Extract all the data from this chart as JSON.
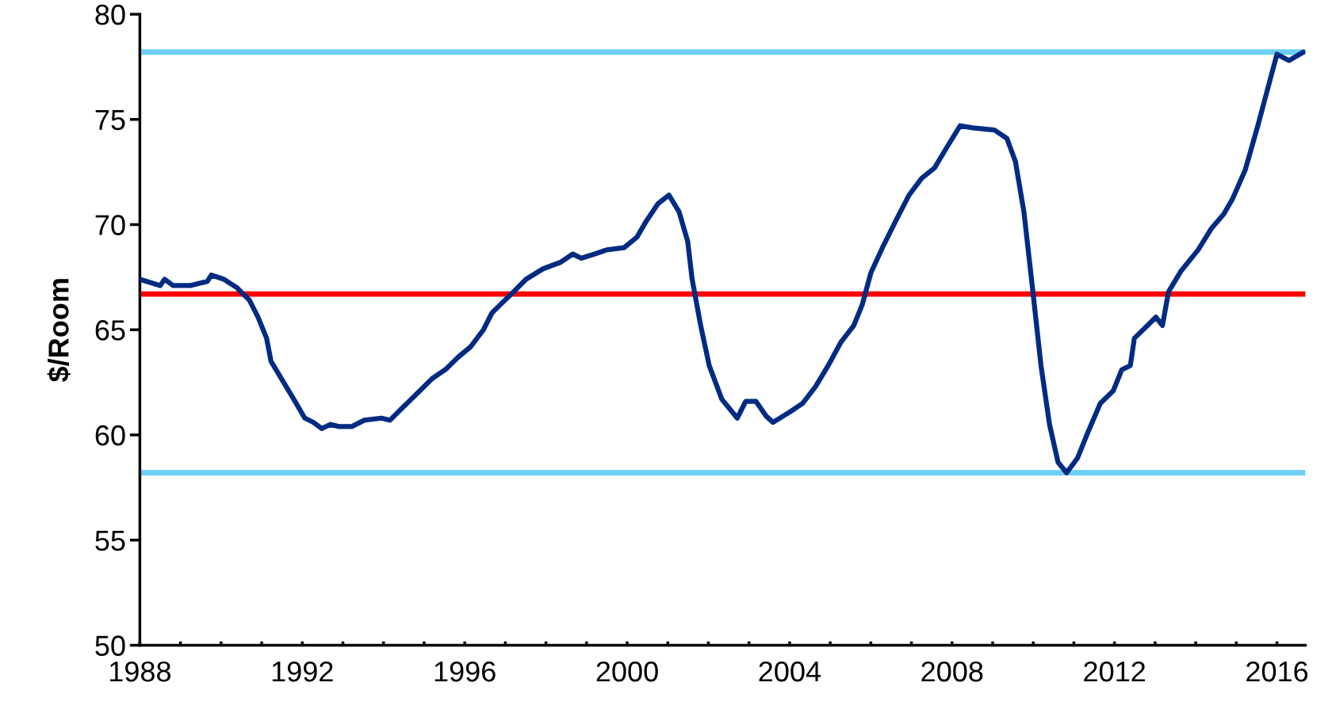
{
  "chart_data": {
    "type": "line",
    "ylabel": "$/Room",
    "x": [
      1988.0,
      1988.5,
      1988.61,
      1988.82,
      1989.24,
      1989.66,
      1989.76,
      1990.07,
      1990.39,
      1990.7,
      1990.91,
      1991.12,
      1991.23,
      1991.54,
      1991.85,
      1992.06,
      1992.27,
      1992.48,
      1992.69,
      1992.9,
      1993.22,
      1993.53,
      1993.95,
      1994.16,
      1994.47,
      1994.79,
      1995.21,
      1995.52,
      1995.84,
      1996.15,
      1996.46,
      1996.67,
      1996.88,
      1997.2,
      1997.51,
      1997.93,
      1998.35,
      1998.66,
      1998.87,
      1999.19,
      1999.5,
      1999.92,
      2000.24,
      2000.45,
      2000.76,
      2001.03,
      2001.28,
      2001.49,
      2001.6,
      2001.81,
      2002.02,
      2002.33,
      2002.71,
      2002.92,
      2003.17,
      2003.42,
      2003.59,
      2004.01,
      2004.32,
      2004.64,
      2004.95,
      2005.26,
      2005.58,
      2005.79,
      2006.0,
      2006.31,
      2006.62,
      2006.94,
      2007.25,
      2007.57,
      2007.88,
      2008.2,
      2008.51,
      2009.04,
      2009.35,
      2009.56,
      2009.77,
      2009.98,
      2010.19,
      2010.4,
      2010.61,
      2010.82,
      2011.09,
      2011.34,
      2011.65,
      2011.97,
      2012.18,
      2012.39,
      2012.49,
      2012.81,
      2013.02,
      2013.18,
      2013.33,
      2013.64,
      2014.06,
      2014.38,
      2014.69,
      2014.9,
      2015.22,
      2015.53,
      2015.75,
      2016.0,
      2016.3,
      2016.65
    ],
    "series": [
      {
        "color": "#002b82",
        "values": [
          67.4,
          67.1,
          67.4,
          67.1,
          67.1,
          67.3,
          67.6,
          67.4,
          67.0,
          66.4,
          65.6,
          64.6,
          63.5,
          62.5,
          61.5,
          60.8,
          60.6,
          60.3,
          60.5,
          60.4,
          60.4,
          60.7,
          60.8,
          60.7,
          61.3,
          61.9,
          62.7,
          63.1,
          63.7,
          64.2,
          65.0,
          65.8,
          66.2,
          66.8,
          67.4,
          67.9,
          68.2,
          68.6,
          68.4,
          68.6,
          68.8,
          68.9,
          69.4,
          70.1,
          71.0,
          71.4,
          70.6,
          69.2,
          67.4,
          65.2,
          63.3,
          61.7,
          60.8,
          61.6,
          61.6,
          60.9,
          60.6,
          61.1,
          61.5,
          62.3,
          63.3,
          64.4,
          65.2,
          66.2,
          67.7,
          69.0,
          70.2,
          71.4,
          72.2,
          72.7,
          73.7,
          74.7,
          74.6,
          74.5,
          74.1,
          73.0,
          70.6,
          67.0,
          63.3,
          60.5,
          58.7,
          58.2,
          58.9,
          60.1,
          61.5,
          62.1,
          63.1,
          63.3,
          64.6,
          65.2,
          65.6,
          65.2,
          66.8,
          67.8,
          68.8,
          69.8,
          70.5,
          71.2,
          72.6,
          74.7,
          76.3,
          78.1,
          77.8,
          78.2
        ]
      }
    ],
    "xlim": [
      1988,
      2016.7
    ],
    "ylim": [
      50,
      80
    ],
    "xticks": [
      1988,
      {
        "value": 1989,
        "label": null
      },
      {
        "value": 1990,
        "label": null
      },
      {
        "value": 1991,
        "label": null
      },
      1992,
      {
        "value": 1993,
        "label": null
      },
      {
        "value": 1994,
        "label": null
      },
      {
        "value": 1995,
        "label": null
      },
      1996,
      {
        "value": 1997,
        "label": null
      },
      {
        "value": 1998,
        "label": null
      },
      {
        "value": 1999,
        "label": null
      },
      2000,
      {
        "value": 2001,
        "label": null
      },
      {
        "value": 2002,
        "label": null
      },
      {
        "value": 2003,
        "label": null
      },
      2004,
      {
        "value": 2005,
        "label": null
      },
      {
        "value": 2006,
        "label": null
      },
      {
        "value": 2007,
        "label": null
      },
      2008,
      {
        "value": 2009,
        "label": null
      },
      {
        "value": 2010,
        "label": null
      },
      {
        "value": 2011,
        "label": null
      },
      2012,
      {
        "value": 2013,
        "label": null
      },
      {
        "value": 2014,
        "label": null
      },
      {
        "value": 2015,
        "label": null
      },
      2016
    ],
    "yticks": [
      50,
      55,
      60,
      65,
      70,
      75,
      80
    ],
    "ref_lines": [
      {
        "axis": "y",
        "value": 78.2,
        "color": "#6dcff6"
      },
      {
        "axis": "y",
        "value": 66.7,
        "color": "#ff0000"
      },
      {
        "axis": "y",
        "value": 58.2,
        "color": "#6dcff6"
      }
    ],
    "marker": "none",
    "line_style": "solid"
  }
}
